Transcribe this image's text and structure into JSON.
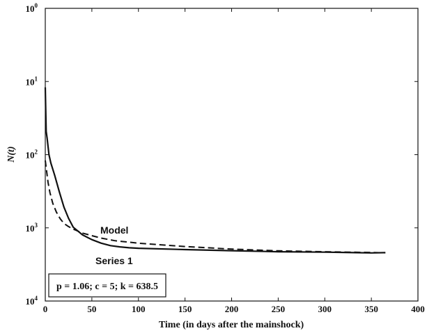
{
  "chart_data": {
    "type": "line",
    "xlabel": "Time (in days after the mainshock)",
    "ylabel": "N(t)",
    "xlim": [
      0,
      400
    ],
    "ylim": [
      1,
      10000
    ],
    "yscale": "log",
    "y_inverted": true,
    "x_ticks": [
      0,
      50,
      100,
      150,
      200,
      250,
      300,
      350,
      400
    ],
    "x_tick_labels": [
      "0",
      "50",
      "100",
      "150",
      "200",
      "250",
      "300",
      "350",
      "400"
    ],
    "y_ticks": [
      1,
      10,
      100,
      1000,
      10000
    ],
    "y_tick_labels": [
      {
        "base": "10",
        "exp": "0"
      },
      {
        "base": "10",
        "exp": "1"
      },
      {
        "base": "10",
        "exp": "2"
      },
      {
        "base": "10",
        "exp": "3"
      },
      {
        "base": "10",
        "exp": "4"
      }
    ],
    "grid": false,
    "annotation": "p = 1.06; c = 5; k = 638.5",
    "series": [
      {
        "name": "Series 1",
        "style": "solid",
        "points": [
          [
            0,
            12
          ],
          [
            1,
            48
          ],
          [
            2,
            60
          ],
          [
            4,
            100
          ],
          [
            6,
            130
          ],
          [
            10,
            190
          ],
          [
            15,
            320
          ],
          [
            20,
            520
          ],
          [
            25,
            740
          ],
          [
            30,
            980
          ],
          [
            40,
            1250
          ],
          [
            50,
            1450
          ],
          [
            60,
            1620
          ],
          [
            70,
            1750
          ],
          [
            80,
            1820
          ],
          [
            90,
            1870
          ],
          [
            100,
            1900
          ],
          [
            150,
            1980
          ],
          [
            200,
            2050
          ],
          [
            250,
            2120
          ],
          [
            300,
            2150
          ],
          [
            350,
            2200
          ],
          [
            365,
            2180
          ]
        ]
      },
      {
        "name": "Model",
        "style": "dashed",
        "points": [
          [
            0,
            120
          ],
          [
            3,
            240
          ],
          [
            5,
            330
          ],
          [
            8,
            460
          ],
          [
            12,
            610
          ],
          [
            16,
            750
          ],
          [
            20,
            870
          ],
          [
            25,
            960
          ],
          [
            30,
            1040
          ],
          [
            40,
            1180
          ],
          [
            50,
            1280
          ],
          [
            60,
            1380
          ],
          [
            75,
            1500
          ],
          [
            100,
            1620
          ],
          [
            150,
            1800
          ],
          [
            200,
            1950
          ],
          [
            250,
            2060
          ],
          [
            300,
            2120
          ],
          [
            350,
            2170
          ],
          [
            365,
            2190
          ]
        ]
      }
    ]
  }
}
